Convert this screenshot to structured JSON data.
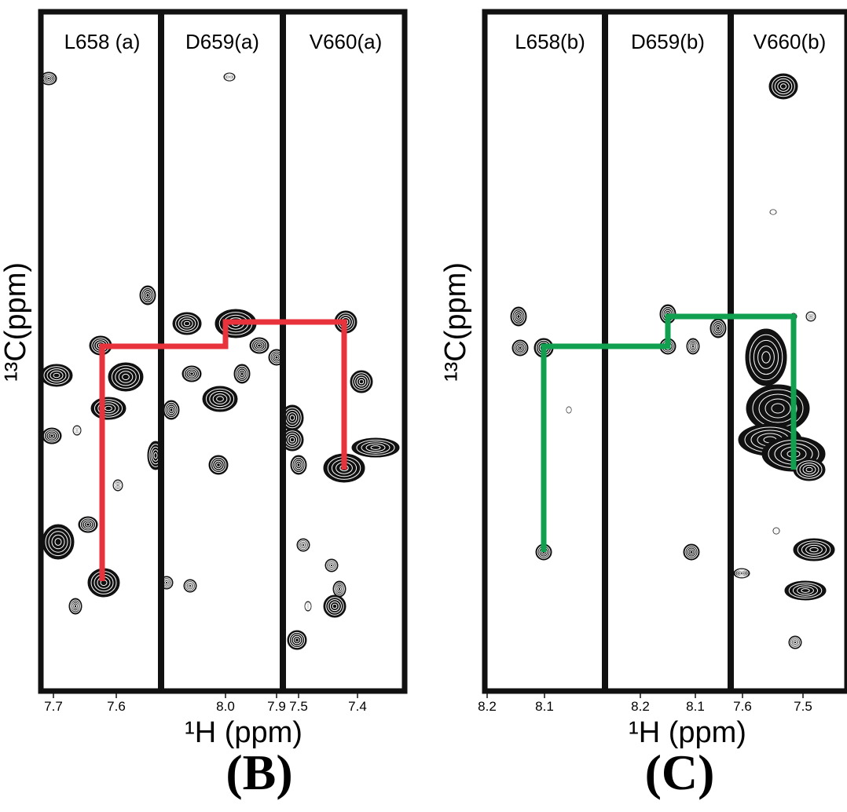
{
  "panels": [
    {
      "label": "(B)",
      "x_axis_label": "¹H (ppm)",
      "y_axis_label": "¹³C(ppm)",
      "strips": [
        {
          "label": "L658 (a)"
        },
        {
          "label": "D659(a)"
        },
        {
          "label": "V660(a)"
        }
      ],
      "x_ticks": [
        "7.7",
        "7.6",
        "8.0",
        "7.9",
        "7.5",
        "7.4"
      ]
    },
    {
      "label": "(C)",
      "x_axis_label": "¹H (ppm)",
      "y_axis_label": "¹³C(ppm)",
      "strips": [
        {
          "label": "L658(b)"
        },
        {
          "label": "D659(b)"
        },
        {
          "label": "V660(b)"
        }
      ],
      "x_ticks": [
        "8.2",
        "8.1",
        "8.2",
        "8.1",
        "7.6",
        "7.5"
      ]
    }
  ]
}
